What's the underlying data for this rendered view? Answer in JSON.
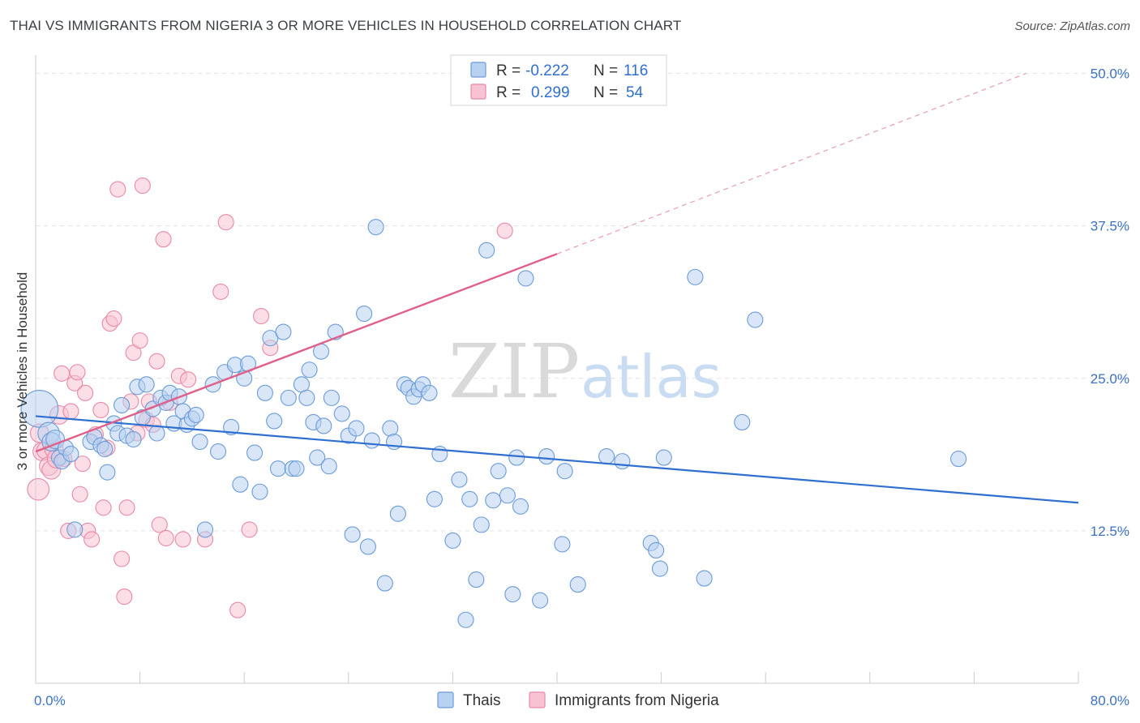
{
  "title": "THAI VS IMMIGRANTS FROM NIGERIA 3 OR MORE VEHICLES IN HOUSEHOLD CORRELATION CHART",
  "source": "Source: ZipAtlas.com",
  "watermark": {
    "part1": "ZIP",
    "part2": "atlas"
  },
  "chart_data": {
    "type": "scatter",
    "ylabel": "3 or more Vehicles in Household",
    "x_ticks": [
      "0.0%",
      "80.0%"
    ],
    "y_ticks": [
      "12.5%",
      "25.0%",
      "37.5%",
      "50.0%"
    ],
    "xlim": [
      0,
      80
    ],
    "ylim": [
      0,
      51.5
    ],
    "grid": true,
    "legend": {
      "placement": "top-center",
      "rows": [
        {
          "r_label": "R =",
          "r_value": "-0.222",
          "n_label": "N =",
          "n_value": "116"
        },
        {
          "r_label": "R =",
          "r_value": "0.299",
          "n_label": "N =",
          "n_value": "54"
        }
      ]
    },
    "colors": {
      "thai_fill": "#b8d1f0",
      "thai_stroke": "#6b9bd8",
      "thai_line": "#2e6fd0",
      "nigeria_fill": "#f7c3d2",
      "nigeria_stroke": "#e889a6",
      "nigeria_line": "#e0608a",
      "axis_text": "#3b72c4",
      "grid": "#e3e3e3"
    },
    "series": [
      {
        "name": "Thais",
        "trend": {
          "x0": 0,
          "y0": 21.9,
          "x1": 80,
          "y1": 14.8
        },
        "points": [
          [
            0.3,
            22.5,
            24
          ],
          [
            1,
            20.5,
            14
          ],
          [
            1.2,
            19.8,
            12
          ],
          [
            1.5,
            20,
            12
          ],
          [
            1.8,
            18.5,
            10
          ],
          [
            2,
            18.2,
            10
          ],
          [
            2.3,
            19.3,
            10
          ],
          [
            2.7,
            18.8,
            10
          ],
          [
            3,
            12.6,
            10
          ],
          [
            4.2,
            19.8,
            10
          ],
          [
            4.5,
            20.2,
            10
          ],
          [
            5,
            19.5,
            10
          ],
          [
            5.3,
            19.2,
            10
          ],
          [
            5.5,
            17.3,
            10
          ],
          [
            6,
            21.3,
            10
          ],
          [
            6.3,
            20.5,
            10
          ],
          [
            6.6,
            22.8,
            10
          ],
          [
            7,
            20.3,
            10
          ],
          [
            7.5,
            20,
            10
          ],
          [
            7.8,
            24.3,
            10
          ],
          [
            8.2,
            21.8,
            10
          ],
          [
            8.5,
            24.5,
            10
          ],
          [
            9,
            22.5,
            10
          ],
          [
            9.3,
            20.5,
            10
          ],
          [
            9.6,
            23.4,
            10
          ],
          [
            10,
            23,
            10
          ],
          [
            10.3,
            23.8,
            10
          ],
          [
            10.6,
            21.3,
            10
          ],
          [
            11,
            23.5,
            10
          ],
          [
            11.3,
            22.3,
            10
          ],
          [
            11.6,
            21.2,
            10
          ],
          [
            12,
            21.7,
            10
          ],
          [
            12.3,
            22,
            10
          ],
          [
            12.6,
            19.8,
            10
          ],
          [
            13,
            12.6,
            10
          ],
          [
            13.6,
            24.5,
            10
          ],
          [
            14,
            19,
            10
          ],
          [
            14.5,
            25.5,
            10
          ],
          [
            15,
            21,
            10
          ],
          [
            15.3,
            26.1,
            10
          ],
          [
            15.7,
            16.3,
            10
          ],
          [
            16,
            25,
            10
          ],
          [
            16.3,
            26.2,
            10
          ],
          [
            16.8,
            18.9,
            10
          ],
          [
            17.2,
            15.7,
            10
          ],
          [
            17.6,
            23.8,
            10
          ],
          [
            18,
            28.3,
            10
          ],
          [
            18.3,
            21.5,
            10
          ],
          [
            18.6,
            17.6,
            10
          ],
          [
            19,
            28.8,
            10
          ],
          [
            19.4,
            23.4,
            10
          ],
          [
            19.7,
            17.6,
            10
          ],
          [
            20,
            17.6,
            10
          ],
          [
            20.4,
            24.5,
            10
          ],
          [
            20.8,
            23.4,
            10
          ],
          [
            21,
            25.7,
            10
          ],
          [
            21.3,
            21.4,
            10
          ],
          [
            21.6,
            18.5,
            10
          ],
          [
            21.9,
            27.2,
            10
          ],
          [
            22.1,
            21.1,
            10
          ],
          [
            22.5,
            17.8,
            10
          ],
          [
            22.7,
            23.4,
            10
          ],
          [
            23,
            28.8,
            10
          ],
          [
            23.5,
            22.1,
            10
          ],
          [
            24,
            20.3,
            10
          ],
          [
            24.3,
            12.2,
            10
          ],
          [
            24.6,
            20.9,
            10
          ],
          [
            25.2,
            30.3,
            10
          ],
          [
            25.5,
            11.2,
            10
          ],
          [
            25.8,
            19.9,
            10
          ],
          [
            26.1,
            37.4,
            10
          ],
          [
            26.8,
            8.2,
            10
          ],
          [
            27.2,
            20.9,
            10
          ],
          [
            27.5,
            19.8,
            10
          ],
          [
            27.8,
            13.9,
            10
          ],
          [
            28.3,
            24.5,
            10
          ],
          [
            28.6,
            24.2,
            10
          ],
          [
            29,
            23.5,
            10
          ],
          [
            29.4,
            24.1,
            10
          ],
          [
            29.7,
            24.5,
            10
          ],
          [
            30.2,
            23.8,
            10
          ],
          [
            30.6,
            15.1,
            10
          ],
          [
            31,
            18.8,
            10
          ],
          [
            32,
            11.7,
            10
          ],
          [
            32.5,
            16.7,
            10
          ],
          [
            33.3,
            15.1,
            10
          ],
          [
            33,
            5.2,
            10
          ],
          [
            33.8,
            8.5,
            10
          ],
          [
            34.2,
            13,
            10
          ],
          [
            34.6,
            35.5,
            10
          ],
          [
            35.1,
            15,
            10
          ],
          [
            35.5,
            17.4,
            10
          ],
          [
            36.2,
            15.4,
            10
          ],
          [
            36.6,
            7.3,
            10
          ],
          [
            36.9,
            18.5,
            10
          ],
          [
            37.2,
            14.5,
            10
          ],
          [
            37.6,
            33.2,
            10
          ],
          [
            38.7,
            6.8,
            10
          ],
          [
            39.2,
            18.6,
            10
          ],
          [
            40.4,
            11.4,
            10
          ],
          [
            40.6,
            17.4,
            10
          ],
          [
            41.6,
            8.1,
            10
          ],
          [
            43.8,
            18.6,
            10
          ],
          [
            45,
            18.2,
            10
          ],
          [
            47.2,
            11.5,
            10
          ],
          [
            47.6,
            10.9,
            10
          ],
          [
            47.9,
            9.4,
            10
          ],
          [
            48.2,
            18.5,
            10
          ],
          [
            50.6,
            33.3,
            10
          ],
          [
            51.3,
            8.6,
            10
          ],
          [
            54.2,
            21.4,
            10
          ],
          [
            55.2,
            29.8,
            10
          ],
          [
            70.8,
            18.4,
            10
          ]
        ]
      },
      {
        "name": "Immigrants from Nigeria",
        "trend": {
          "x0": 0,
          "y0": 19,
          "x1": 40,
          "y1": 35.2,
          "x2": 76,
          "y2": 50
        },
        "points": [
          [
            0.2,
            15.9,
            14
          ],
          [
            0.3,
            20.5,
            12
          ],
          [
            0.5,
            19,
            12
          ],
          [
            0.8,
            19.1,
            12
          ],
          [
            1,
            17.8,
            12
          ],
          [
            1.2,
            17.5,
            12
          ],
          [
            1.4,
            19.2,
            12
          ],
          [
            1.6,
            18.4,
            12
          ],
          [
            1.8,
            22,
            12
          ],
          [
            2,
            25.4,
            10
          ],
          [
            2.2,
            18.4,
            10
          ],
          [
            2.5,
            12.5,
            10
          ],
          [
            2.7,
            22.3,
            10
          ],
          [
            3,
            24.6,
            10
          ],
          [
            3.2,
            25.5,
            10
          ],
          [
            3.4,
            15.5,
            10
          ],
          [
            3.6,
            18,
            10
          ],
          [
            3.8,
            23.8,
            10
          ],
          [
            4,
            12.5,
            10
          ],
          [
            4.3,
            11.8,
            10
          ],
          [
            4.6,
            20.4,
            10
          ],
          [
            5,
            22.4,
            10
          ],
          [
            5.2,
            14.4,
            10
          ],
          [
            5.5,
            19.3,
            10
          ],
          [
            5.7,
            29.5,
            10
          ],
          [
            6,
            29.9,
            10
          ],
          [
            6.3,
            40.5,
            10
          ],
          [
            6.6,
            10.2,
            10
          ],
          [
            6.8,
            7.1,
            10
          ],
          [
            7,
            14.4,
            10
          ],
          [
            7.3,
            23.1,
            10
          ],
          [
            7.5,
            27.1,
            10
          ],
          [
            7.8,
            20.5,
            10
          ],
          [
            8,
            28.1,
            10
          ],
          [
            8.2,
            40.8,
            10
          ],
          [
            8.5,
            21.6,
            10
          ],
          [
            8.7,
            23.1,
            10
          ],
          [
            9,
            21.2,
            10
          ],
          [
            9.3,
            26.4,
            10
          ],
          [
            9.5,
            13,
            10
          ],
          [
            9.8,
            36.4,
            10
          ],
          [
            10,
            11.9,
            10
          ],
          [
            10.3,
            23,
            10
          ],
          [
            11,
            25.2,
            10
          ],
          [
            11.3,
            11.8,
            10
          ],
          [
            11.7,
            24.9,
            10
          ],
          [
            13,
            11.8,
            10
          ],
          [
            14.2,
            32.1,
            10
          ],
          [
            14.6,
            37.8,
            10
          ],
          [
            15.5,
            6,
            10
          ],
          [
            16.4,
            12.6,
            10
          ],
          [
            17.3,
            30.1,
            10
          ],
          [
            18,
            27.5,
            10
          ],
          [
            36,
            37.1,
            10
          ]
        ]
      }
    ]
  }
}
